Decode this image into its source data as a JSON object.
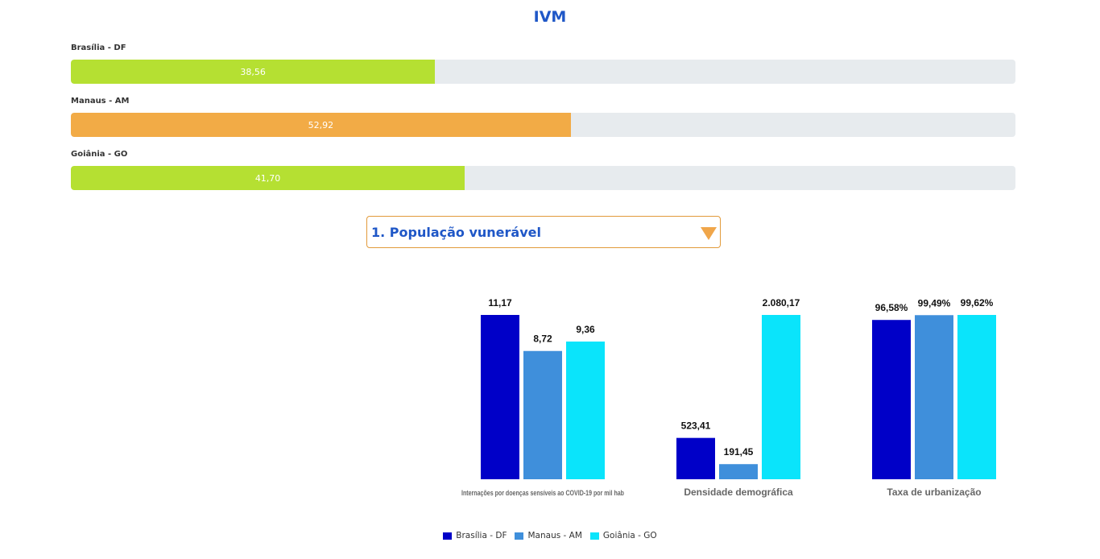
{
  "title": "IVM",
  "ivm": [
    {
      "label": "Brasília - DF",
      "value": 38.56,
      "value_text": "38,56",
      "color": "#b5e032"
    },
    {
      "label": "Manaus - AM",
      "value": 52.92,
      "value_text": "52,92",
      "color": "#f2ab46"
    },
    {
      "label": "Goiânia - GO",
      "value": 41.7,
      "value_text": "41,70",
      "color": "#b5e032"
    }
  ],
  "ivm_max": 100,
  "dropdown": {
    "selected": "1. População vunerável"
  },
  "chart_data": {
    "type": "bar",
    "categories": [
      "Internações por doenças sensíveis ao COVID-19 por mil hab",
      "Densidade demográfica",
      "Taxa de urbanização"
    ],
    "series": [
      {
        "name": "Brasília - DF",
        "color": "#0000c8",
        "values": [
          11.17,
          523.41,
          96.58
        ],
        "labels": [
          "11,17",
          "523,41",
          "96,58%"
        ]
      },
      {
        "name": "Manaus - AM",
        "color": "#3f8fdb",
        "values": [
          8.72,
          191.45,
          99.49
        ],
        "labels": [
          "8,72",
          "191,45",
          "99,49%"
        ]
      },
      {
        "name": "Goiânia - GO",
        "color": "#0ae4fb",
        "values": [
          9.36,
          2080.17,
          99.62
        ],
        "labels": [
          "9,36",
          "2.080,17",
          "99,62%"
        ]
      }
    ],
    "grid": false,
    "legend_position": "bottom-center"
  }
}
